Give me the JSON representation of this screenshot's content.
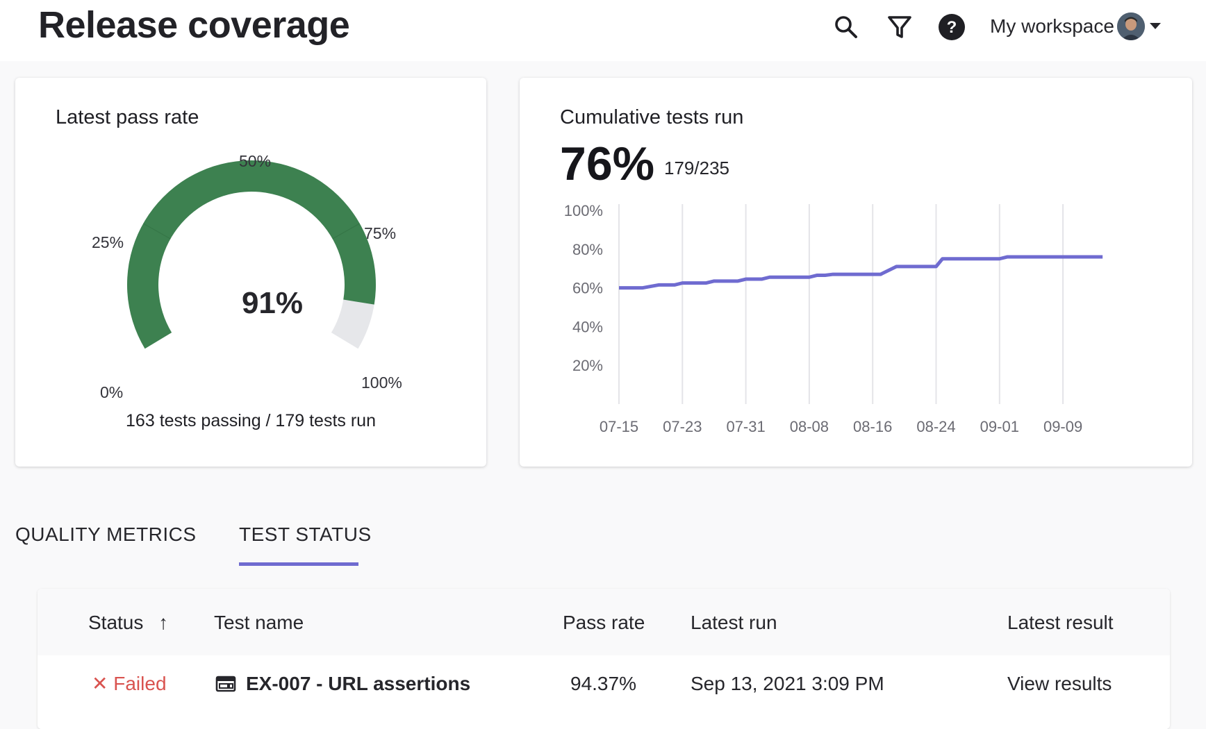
{
  "header": {
    "title": "Release coverage",
    "workspace_label": "My workspace",
    "icons": [
      "search-icon",
      "filter-icon",
      "help-icon",
      "caret-down-icon"
    ]
  },
  "pass_rate": {
    "title": "Latest pass rate",
    "value_label": "91%",
    "value": 91,
    "ticks": {
      "t0": "0%",
      "t25": "25%",
      "t50": "50%",
      "t75": "75%",
      "t100": "100%"
    },
    "caption": "163 tests passing / 179 tests run",
    "colors": {
      "fill": "#3d8150",
      "track": "#e6e7ea"
    }
  },
  "cumulative": {
    "title": "Cumulative tests run",
    "percent": "76%",
    "ratio": "179/235"
  },
  "chart_data": {
    "type": "line",
    "title": "Cumulative tests run",
    "xlabel": "",
    "ylabel": "",
    "ylim": [
      0,
      100
    ],
    "yticks": [
      "100%",
      "80%",
      "60%",
      "40%",
      "20%"
    ],
    "ytick_values": [
      100,
      80,
      60,
      40,
      20
    ],
    "xticks": [
      "07-15",
      "07-23",
      "07-31",
      "08-08",
      "08-16",
      "08-24",
      "09-01",
      "09-09"
    ],
    "xlim": [
      0,
      61
    ],
    "series": [
      {
        "name": "Cumulative tests run",
        "color": "#6f6bd0",
        "x": [
          0,
          3,
          5,
          7,
          8,
          11,
          12,
          15,
          16,
          18,
          19,
          24,
          25,
          26,
          27,
          33,
          35,
          40,
          40.8,
          48,
          49,
          56,
          57,
          61
        ],
        "y": [
          60,
          60,
          61.5,
          61.5,
          62.5,
          62.5,
          63.5,
          63.5,
          64.5,
          64.5,
          65.5,
          65.5,
          66.5,
          66.5,
          67,
          67,
          71,
          71,
          75,
          75,
          76,
          76,
          76,
          76
        ]
      }
    ]
  },
  "tabs": [
    {
      "label": "QUALITY METRICS"
    },
    {
      "label": "TEST STATUS"
    }
  ],
  "table": {
    "columns": [
      "Status",
      "Test name",
      "Pass rate",
      "Latest run",
      "Latest result"
    ],
    "sort_indicator": "↑",
    "rows": [
      {
        "status_icon": "✕",
        "status": "Failed",
        "test_name": "EX-007 - URL assertions",
        "pass_rate": "94.37%",
        "latest_run": "Sep 13, 2021 3:09 PM",
        "latest_result": "View results"
      }
    ]
  }
}
